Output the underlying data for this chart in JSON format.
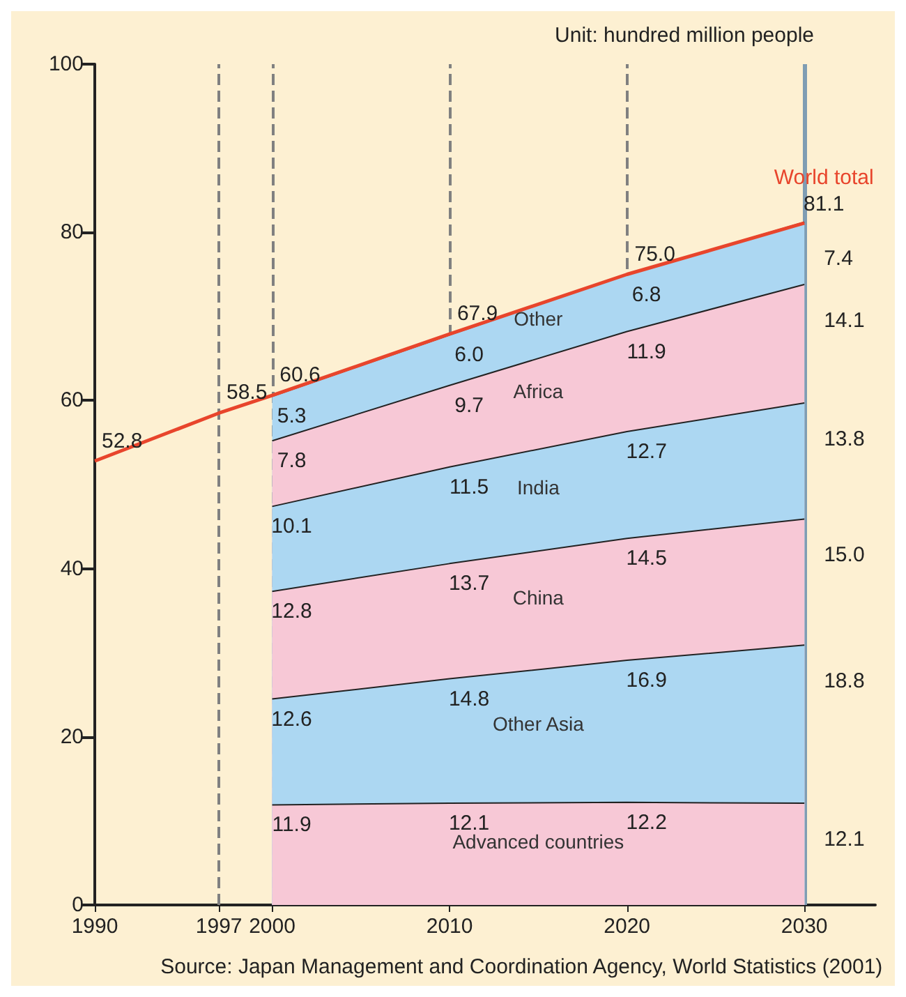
{
  "chart_data": {
    "type": "area",
    "stacked": true,
    "x": [
      2000,
      2010,
      2020,
      2030
    ],
    "series": [
      {
        "name": "Advanced countries",
        "color": "#f7c8d6",
        "values": [
          11.9,
          12.1,
          12.2,
          12.1
        ],
        "value_labels": [
          "11.9",
          "12.1",
          "12.2",
          "12.1"
        ]
      },
      {
        "name": "Other Asia",
        "color": "#acd7f2",
        "values": [
          12.6,
          14.8,
          16.9,
          18.8
        ],
        "value_labels": [
          "12.6",
          "14.8",
          "16.9",
          "18.8"
        ]
      },
      {
        "name": "China",
        "color": "#f7c8d6",
        "values": [
          12.8,
          13.7,
          14.5,
          15.0
        ],
        "value_labels": [
          "12.8",
          "13.7",
          "14.5",
          "15.0"
        ]
      },
      {
        "name": "India",
        "color": "#acd7f2",
        "values": [
          10.1,
          11.5,
          12.7,
          13.8
        ],
        "value_labels": [
          "10.1",
          "11.5",
          "12.7",
          "13.8"
        ]
      },
      {
        "name": "Africa",
        "color": "#f7c8d6",
        "values": [
          7.8,
          9.7,
          11.9,
          14.1
        ],
        "value_labels": [
          "7.8",
          "9.7",
          "11.9",
          "14.1"
        ]
      },
      {
        "name": "Other",
        "color": "#acd7f2",
        "values": [
          5.3,
          6.0,
          6.8,
          7.4
        ],
        "value_labels": [
          "5.3",
          "6.0",
          "6.8",
          "7.4"
        ]
      },
      {
        "name": "World total",
        "type": "line",
        "color": "#e8452c",
        "x": [
          1990,
          1997,
          2000,
          2010,
          2020,
          2030
        ],
        "values": [
          52.8,
          58.5,
          60.6,
          67.9,
          75.0,
          81.1
        ],
        "value_labels": [
          "52.8",
          "58.5",
          "60.6",
          "67.9",
          "75.0",
          "81.1"
        ]
      }
    ],
    "xlim": [
      1990,
      2034
    ],
    "xticks": [
      1990,
      1997,
      2000,
      2010,
      2020,
      2030
    ],
    "ylim": [
      0,
      100
    ],
    "yticks": [
      0,
      20,
      40,
      60,
      80,
      100
    ],
    "ref_lines": [
      {
        "axis": "x",
        "value": 1997,
        "color": "#808080",
        "line_style": "dashed"
      },
      {
        "axis": "x",
        "value": 2000,
        "color": "#808080",
        "line_style": "dashed"
      },
      {
        "axis": "x",
        "value": 2010,
        "color": "#808080",
        "line_style": "dashed"
      },
      {
        "axis": "x",
        "value": 2020,
        "color": "#808080",
        "line_style": "dashed"
      },
      {
        "axis": "x",
        "value": 2030,
        "color": "#7f9db3",
        "line_style": "solid"
      }
    ],
    "grid": false,
    "legend": false,
    "marker": "none",
    "annotations": [
      "Unit: hundred million people",
      "Source: Japan Management and Coordination Agency, World Statistics (2001)"
    ]
  }
}
